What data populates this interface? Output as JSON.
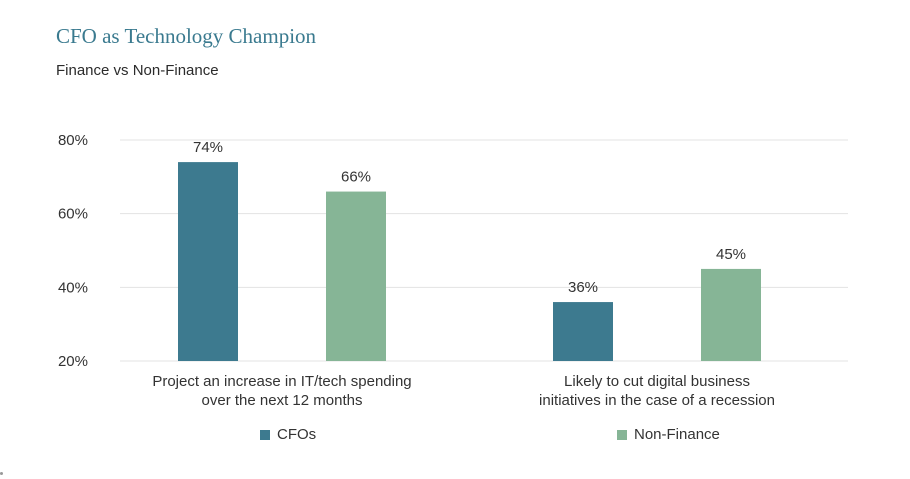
{
  "header": {
    "title": "CFO as Technology Champion",
    "subtitle": "Finance vs Non-Finance"
  },
  "colors": {
    "cfo": "#3d7a8f",
    "non_finance": "#86b596",
    "grid": "#e3e3e3",
    "text": "#333333"
  },
  "chart_data": {
    "type": "bar",
    "title": "CFO as Technology Champion",
    "subtitle": "Finance vs Non-Finance",
    "categories": [
      "Project an increase in IT/tech spending over the next 12 months",
      "Likely to cut digital business initiatives in the case of a recession"
    ],
    "category_lines": [
      [
        "Project an increase in IT/tech spending",
        "over the next 12 months"
      ],
      [
        "Likely to cut digital business",
        "initiatives in the case of a recession"
      ]
    ],
    "series": [
      {
        "name": "CFOs",
        "values": [
          74,
          36
        ],
        "labels": [
          "74%",
          "36%"
        ]
      },
      {
        "name": "Non-Finance",
        "values": [
          66,
          45
        ],
        "labels": [
          "66%",
          "45%"
        ]
      }
    ],
    "y_ticks": [
      "20%",
      "40%",
      "60%",
      "80%"
    ],
    "y_tick_values": [
      20,
      40,
      60,
      80
    ],
    "ylim": [
      20,
      80
    ],
    "grid": true,
    "legend_position": "bottom",
    "legend": [
      "CFOs",
      "Non-Finance"
    ]
  }
}
